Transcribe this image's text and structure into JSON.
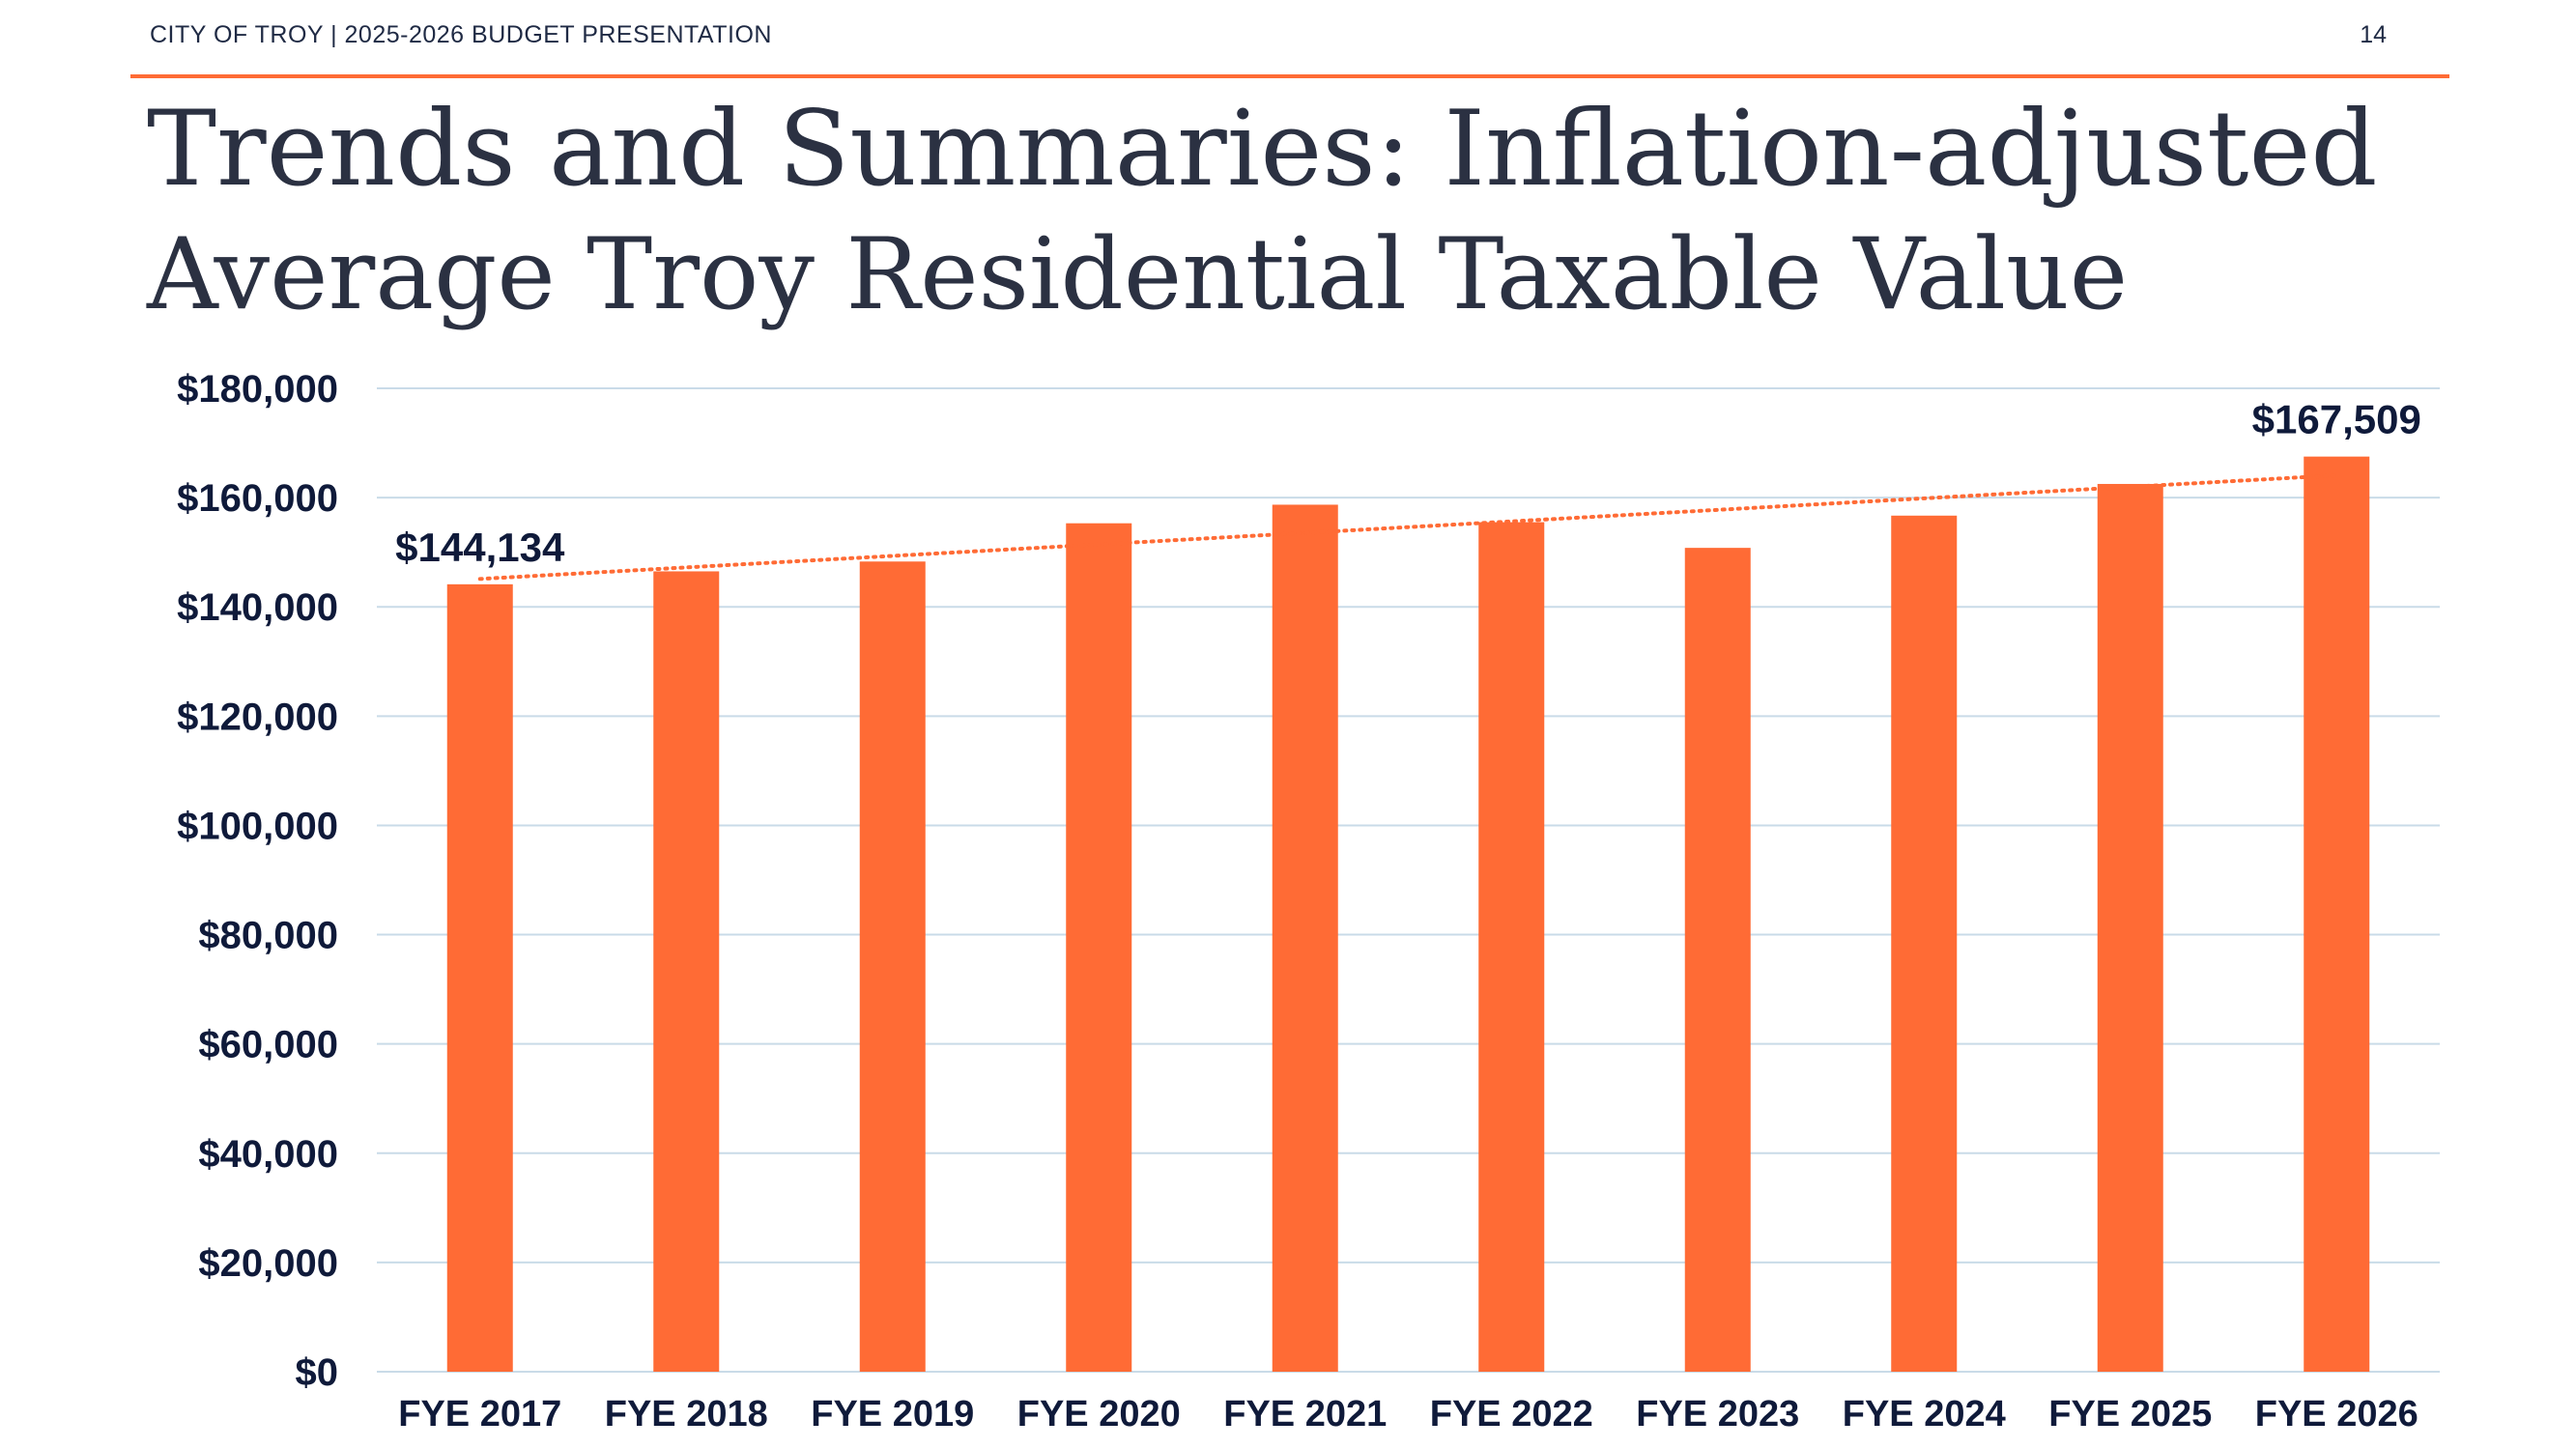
{
  "header": {
    "text": "CITY OF TROY | 2025-2026 BUDGET PRESENTATION",
    "page_number": "14"
  },
  "slide": {
    "title": "Trends and Summaries: Inflation-adjusted",
    "subtitle": "Average Troy Residential Taxable Value"
  },
  "colors": {
    "accent": "#ff6b35",
    "text": "#0f1a3a",
    "grid": "#c9dbe8"
  },
  "chart_data": {
    "type": "bar",
    "categories": [
      "FYE 2017",
      "FYE 2018",
      "FYE 2019",
      "FYE 2020",
      "FYE 2021",
      "FYE 2022",
      "FYE 2023",
      "FYE 2024",
      "FYE 2025",
      "FYE 2026"
    ],
    "values": [
      144134,
      146500,
      148300,
      155300,
      158700,
      155500,
      150800,
      156700,
      162500,
      167509
    ],
    "ylim": [
      0,
      180000
    ],
    "yticks": [
      0,
      20000,
      40000,
      60000,
      80000,
      100000,
      120000,
      140000,
      160000,
      180000
    ],
    "ytick_labels": [
      "$0",
      "$20,000",
      "$40,000",
      "$60,000",
      "$80,000",
      "$100,000",
      "$120,000",
      "$140,000",
      "$160,000",
      "$180,000"
    ],
    "data_labels": [
      {
        "index": 0,
        "text": "$144,134"
      },
      {
        "index": 9,
        "text": "$167,509"
      }
    ],
    "trendline": {
      "type": "linear",
      "style": "dotted"
    },
    "grid": true,
    "legend": "none",
    "bar_color": "#ff6b35"
  }
}
